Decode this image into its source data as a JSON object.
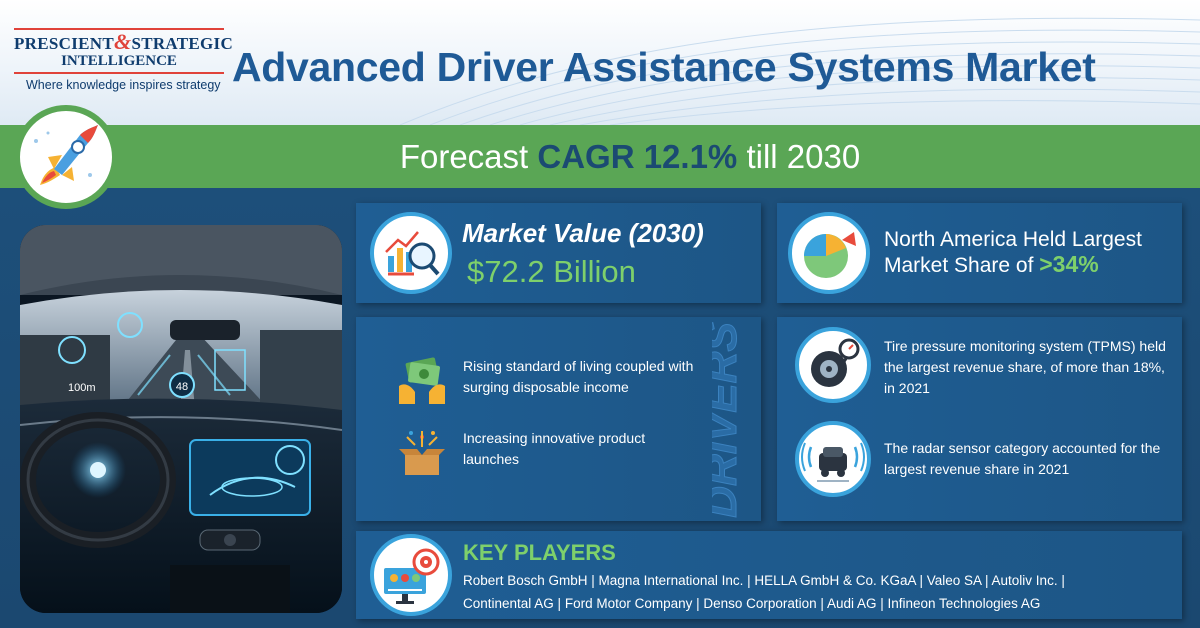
{
  "header": {
    "logo_line1a": "PRESCIENT",
    "logo_amp": "&",
    "logo_line1b": "STRATEGIC",
    "logo_line2": "INTELLIGENCE",
    "logo_tagline": "Where knowledge inspires strategy",
    "title": "Advanced Driver Assistance Systems Market"
  },
  "forecast": {
    "prefix": "Forecast",
    "cagr": "CAGR 12.1%",
    "suffix": "till 2030"
  },
  "market_value": {
    "label": "Market Value (2030)",
    "value": "$72.2 Billion"
  },
  "north_america": {
    "line1": "North America Held Largest",
    "line2": "Market Share of",
    "share": ">34%"
  },
  "drivers": {
    "vertical_label": "DRIVERS",
    "items": [
      {
        "text": "Rising standard of living coupled with surging disposable income",
        "icon": "money-hands-icon"
      },
      {
        "text": "Increasing innovative product launches",
        "icon": "launch-box-icon"
      }
    ]
  },
  "segments": {
    "items": [
      {
        "text": "Tire pressure monitoring system (TPMS) held the largest revenue share, of more than 18%, in 2021",
        "icon": "tire-gauge-icon"
      },
      {
        "text": "The radar sensor category accounted for the largest revenue share in 2021",
        "icon": "radar-car-icon"
      }
    ]
  },
  "key_players": {
    "title": "KEY PLAYERS",
    "line1": "Robert Bosch GmbH | Magna International Inc. | HELLA GmbH & Co. KGaA | Valeo SA | Autoliv Inc. |",
    "line2": "Continental AG | Ford Motor Company | Denso Corporation | Audi AG | Infineon Technologies AG"
  },
  "photo": {
    "hud_speed": "48",
    "hud_distance": "100m"
  },
  "colors": {
    "navy": "#1b4a72",
    "title_blue": "#1f5a96",
    "green": "#5aa655",
    "accent_green": "#7ed06b",
    "icon_ring": "#3aa3dc",
    "logo_red": "#e0423a"
  }
}
